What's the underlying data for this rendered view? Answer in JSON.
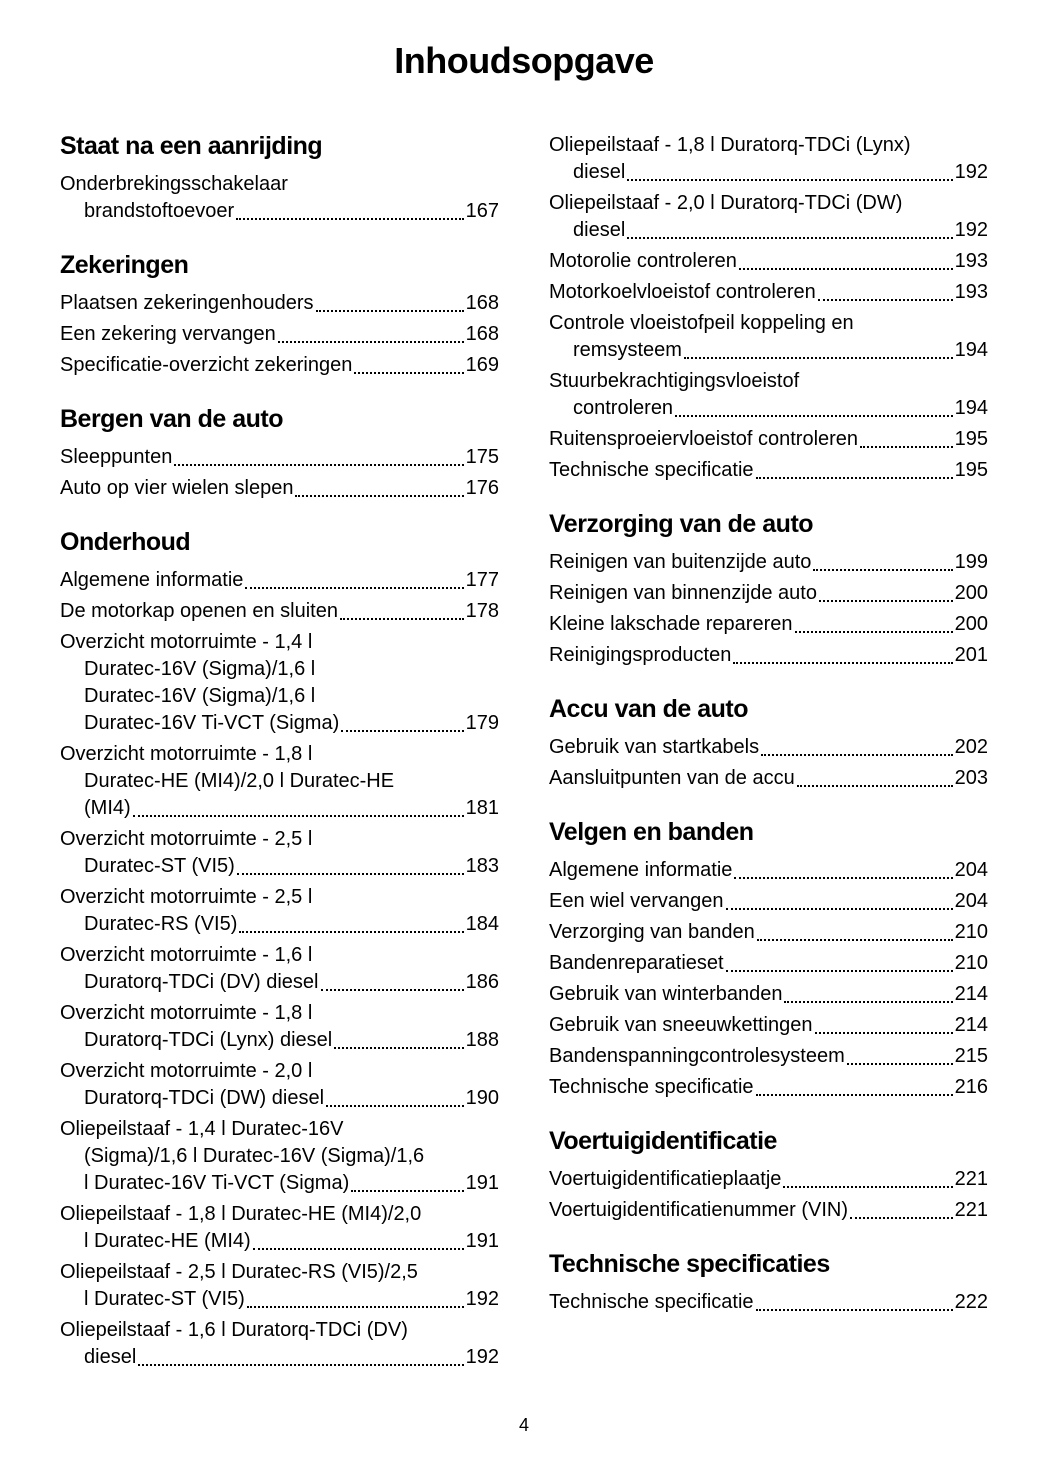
{
  "page_title": "Inhoudsopgave",
  "page_number": "4",
  "colors": {
    "text": "#000000",
    "background": "#ffffff"
  },
  "left_column": [
    {
      "heading": "Staat na een aanrijding",
      "entries": [
        {
          "lines": [
            "Onderbrekingsschakelaar",
            "brandstoftoevoer"
          ],
          "page": "167"
        }
      ]
    },
    {
      "heading": "Zekeringen",
      "entries": [
        {
          "lines": [
            "Plaatsen zekeringenhouders"
          ],
          "page": "168"
        },
        {
          "lines": [
            "Een zekering vervangen"
          ],
          "page": "168"
        },
        {
          "lines": [
            "Specificatie-overzicht zekeringen"
          ],
          "page": "169"
        }
      ]
    },
    {
      "heading": "Bergen van de auto",
      "entries": [
        {
          "lines": [
            "Sleeppunten"
          ],
          "page": "175"
        },
        {
          "lines": [
            "Auto op vier wielen slepen"
          ],
          "page": "176"
        }
      ]
    },
    {
      "heading": "Onderhoud",
      "entries": [
        {
          "lines": [
            "Algemene informatie"
          ],
          "page": "177"
        },
        {
          "lines": [
            "De motorkap openen en sluiten"
          ],
          "page": "178"
        },
        {
          "lines": [
            "Overzicht motorruimte - 1,4 l",
            "Duratec-16V (Sigma)/1,6 l",
            "Duratec-16V (Sigma)/1,6 l",
            "Duratec-16V Ti-VCT (Sigma)"
          ],
          "page": "179"
        },
        {
          "lines": [
            "Overzicht motorruimte - 1,8 l",
            "Duratec-HE (MI4)/2,0 l Duratec-HE",
            "(MI4)"
          ],
          "page": "181"
        },
        {
          "lines": [
            "Overzicht motorruimte - 2,5 l",
            "Duratec-ST (VI5)"
          ],
          "page": "183"
        },
        {
          "lines": [
            "Overzicht motorruimte - 2,5 l",
            "Duratec-RS (VI5)"
          ],
          "page": "184"
        },
        {
          "lines": [
            "Overzicht motorruimte - 1,6 l",
            "Duratorq-TDCi (DV) diesel "
          ],
          "page": "186"
        },
        {
          "lines": [
            "Overzicht motorruimte - 1,8 l",
            "Duratorq-TDCi (Lynx) diesel "
          ],
          "page": "188"
        },
        {
          "lines": [
            "Overzicht motorruimte - 2,0 l",
            "Duratorq-TDCi (DW) diesel "
          ],
          "page": "190"
        },
        {
          "lines": [
            "Oliepeilstaaf - 1,4 l Duratec-16V",
            "(Sigma)/1,6 l Duratec-16V (Sigma)/1,6",
            "l Duratec-16V Ti-VCT (Sigma)"
          ],
          "page": "191"
        },
        {
          "lines": [
            "Oliepeilstaaf - 1,8 l Duratec-HE (MI4)/2,0",
            "l Duratec-HE (MI4)"
          ],
          "page": "191"
        },
        {
          "lines": [
            "Oliepeilstaaf - 2,5 l Duratec-RS (VI5)/2,5",
            "l Duratec-ST (VI5)"
          ],
          "page": "192"
        },
        {
          "lines": [
            "Oliepeilstaaf - 1,6 l Duratorq-TDCi (DV)",
            "diesel "
          ],
          "page": "192"
        }
      ]
    }
  ],
  "right_column": [
    {
      "heading": null,
      "entries": [
        {
          "lines": [
            "Oliepeilstaaf - 1,8 l Duratorq-TDCi (Lynx)",
            "diesel "
          ],
          "page": "192"
        },
        {
          "lines": [
            "Oliepeilstaaf - 2,0 l Duratorq-TDCi (DW)",
            "diesel "
          ],
          "page": "192"
        },
        {
          "lines": [
            "Motorolie controleren"
          ],
          "page": "193"
        },
        {
          "lines": [
            "Motorkoelvloeistof controleren"
          ],
          "page": "193"
        },
        {
          "lines": [
            "Controle vloeistofpeil koppeling en",
            "remsysteem"
          ],
          "page": "194"
        },
        {
          "lines": [
            "Stuurbekrachtigingsvloeistof",
            "controleren"
          ],
          "page": "194"
        },
        {
          "lines": [
            "Ruitensproeiervloeistof controleren"
          ],
          "page": "195"
        },
        {
          "lines": [
            "Technische specificatie"
          ],
          "page": "195"
        }
      ]
    },
    {
      "heading": "Verzorging van de auto",
      "entries": [
        {
          "lines": [
            "Reinigen van buitenzijde auto"
          ],
          "page": "199"
        },
        {
          "lines": [
            "Reinigen van binnenzijde auto"
          ],
          "page": "200"
        },
        {
          "lines": [
            "Kleine lakschade repareren"
          ],
          "page": "200"
        },
        {
          "lines": [
            "Reinigingsproducten"
          ],
          "page": "201"
        }
      ]
    },
    {
      "heading": "Accu van de auto",
      "entries": [
        {
          "lines": [
            "Gebruik van startkabels"
          ],
          "page": "202"
        },
        {
          "lines": [
            "Aansluitpunten van de accu "
          ],
          "page": "203"
        }
      ]
    },
    {
      "heading": "Velgen en banden",
      "entries": [
        {
          "lines": [
            "Algemene informatie"
          ],
          "page": "204"
        },
        {
          "lines": [
            "Een wiel vervangen"
          ],
          "page": "204"
        },
        {
          "lines": [
            "Verzorging van banden"
          ],
          "page": "210"
        },
        {
          "lines": [
            "Bandenreparatieset "
          ],
          "page": "210"
        },
        {
          "lines": [
            "Gebruik van winterbanden"
          ],
          "page": "214"
        },
        {
          "lines": [
            "Gebruik van sneeuwkettingen"
          ],
          "page": "214"
        },
        {
          "lines": [
            "Bandenspanningcontrolesysteem"
          ],
          "page": "215"
        },
        {
          "lines": [
            "Technische specificatie"
          ],
          "page": "216"
        }
      ]
    },
    {
      "heading": "Voertuigidentificatie",
      "entries": [
        {
          "lines": [
            "Voertuigidentificatieplaatje"
          ],
          "page": "221"
        },
        {
          "lines": [
            "Voertuigidentificatienummer (VIN)"
          ],
          "page": "221"
        }
      ]
    },
    {
      "heading": "Technische specificaties",
      "entries": [
        {
          "lines": [
            "Technische specificatie"
          ],
          "page": "222"
        }
      ]
    }
  ]
}
